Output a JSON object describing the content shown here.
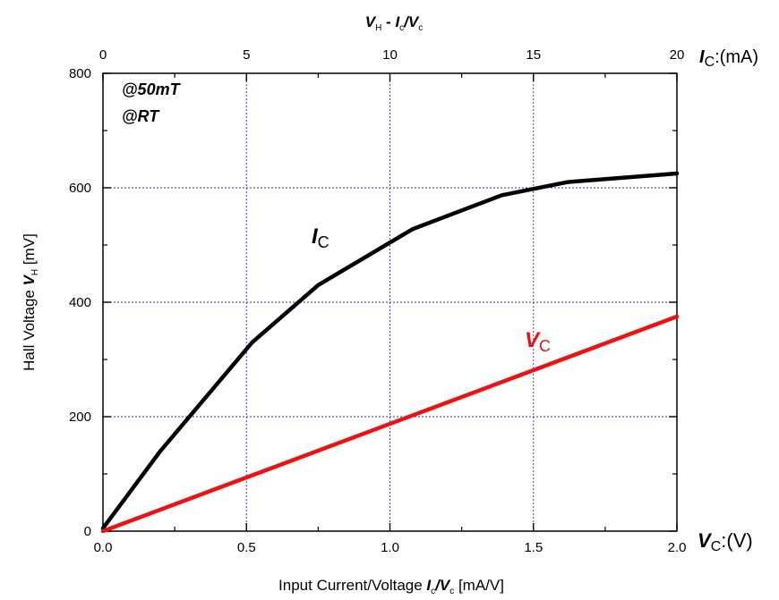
{
  "chart_data": {
    "type": "line",
    "title": "",
    "colors": {
      "Ic": "#000000",
      "Vc": "#ee1111",
      "grid": "#2b2bd6"
    },
    "xlabel": {
      "prefix": "Input Current/Voltage ",
      "v1": "I",
      "v1_sub": "c",
      "sep": "/",
      "v2": "V",
      "v2_sub": "c",
      "suffix": "  [mA/V]"
    },
    "x2label": {
      "v1": "V",
      "v1_sub": "H",
      "dash": " - ",
      "v2": "I",
      "v2_sub": "c",
      "sep": "/",
      "v3": "V",
      "v3_sub": "c"
    },
    "ylabel": {
      "prefix": "Hall Voltage ",
      "var": "V",
      "var_sub": "H",
      "suffix": " [mV]"
    },
    "x_axis": {
      "min": 0,
      "max": 2,
      "ticks": [
        "0.0",
        "0.5",
        "1.0",
        "1.5",
        "2.0"
      ],
      "end_var": "V",
      "end_sub": "C",
      "end_unit": ":(V)"
    },
    "x2_axis": {
      "min": 0,
      "max": 20,
      "ticks": [
        "0",
        "5",
        "10",
        "15",
        "20"
      ],
      "end_var": "I",
      "end_sub": "C",
      "end_unit": ":(mA)"
    },
    "y_axis": {
      "min": 0,
      "max": 800,
      "ticks": [
        "0",
        "200",
        "400",
        "600",
        "800"
      ]
    },
    "grid": true,
    "annotations": [
      "@50mT",
      "@RT"
    ],
    "series": [
      {
        "label_var": "I",
        "label_sub": "C",
        "axis": "top",
        "x": [
          0,
          2,
          5.2,
          7.5,
          10.8,
          13.9,
          16.2,
          20
        ],
        "y": [
          5,
          140,
          330,
          430,
          528,
          587,
          610,
          625
        ]
      },
      {
        "label_var": "V",
        "label_sub": "C",
        "axis": "bottom",
        "x": [
          0,
          2.0
        ],
        "y": [
          0,
          375
        ]
      }
    ]
  }
}
